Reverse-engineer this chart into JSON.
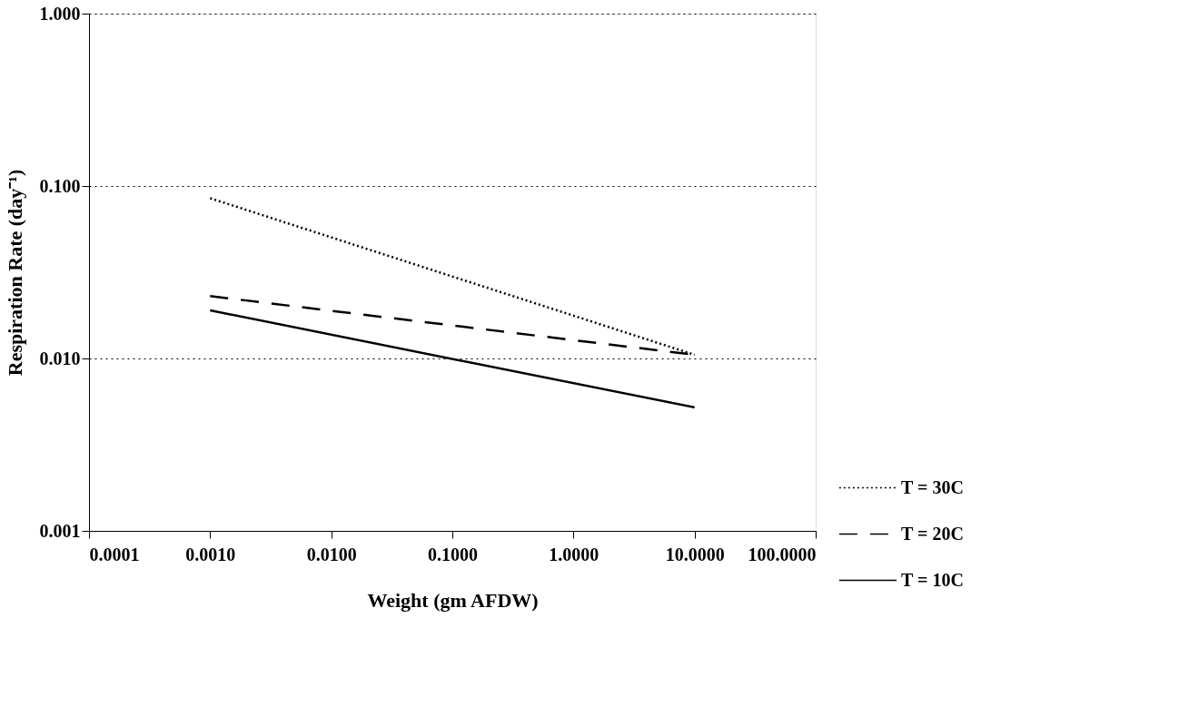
{
  "chart_data": {
    "type": "line",
    "xlabel": "Weight (gm AFDW)",
    "ylabel": "Respiration Rate (day⁻¹)",
    "log": "xy",
    "grid": "y",
    "legend": "bottom right",
    "xlim": [
      0.0001,
      100
    ],
    "ylim": [
      0.001,
      1
    ],
    "xticks": [
      0.0001,
      {
        "value": 0.001,
        "label": "0.0010"
      },
      {
        "value": 0.01,
        "label": "0.0100"
      },
      {
        "value": 0.1,
        "label": "0.1000"
      },
      {
        "value": 1,
        "label": "1.0000"
      },
      {
        "value": 10,
        "label": "10.0000"
      },
      {
        "value": 100,
        "label": "100.0000"
      }
    ],
    "yticks": [
      {
        "value": 0.001,
        "label": "0.001"
      },
      {
        "value": 0.01,
        "label": "0.010"
      },
      {
        "value": 0.1,
        "label": "0.100"
      },
      {
        "value": 1,
        "label": "1.000"
      }
    ],
    "x": [
      0.001,
      10
    ],
    "series": [
      {
        "name": "T = 30C",
        "color": "#000000",
        "line_style": "dotted",
        "values": [
          0.085,
          0.0105
        ]
      },
      {
        "name": "T = 20C",
        "color": "#000000",
        "line_style": "dashed",
        "values": [
          0.023,
          0.0105
        ]
      },
      {
        "name": "T = 10C",
        "color": "#000000",
        "line_style": "solid",
        "values": [
          0.019,
          0.0052
        ]
      }
    ]
  }
}
